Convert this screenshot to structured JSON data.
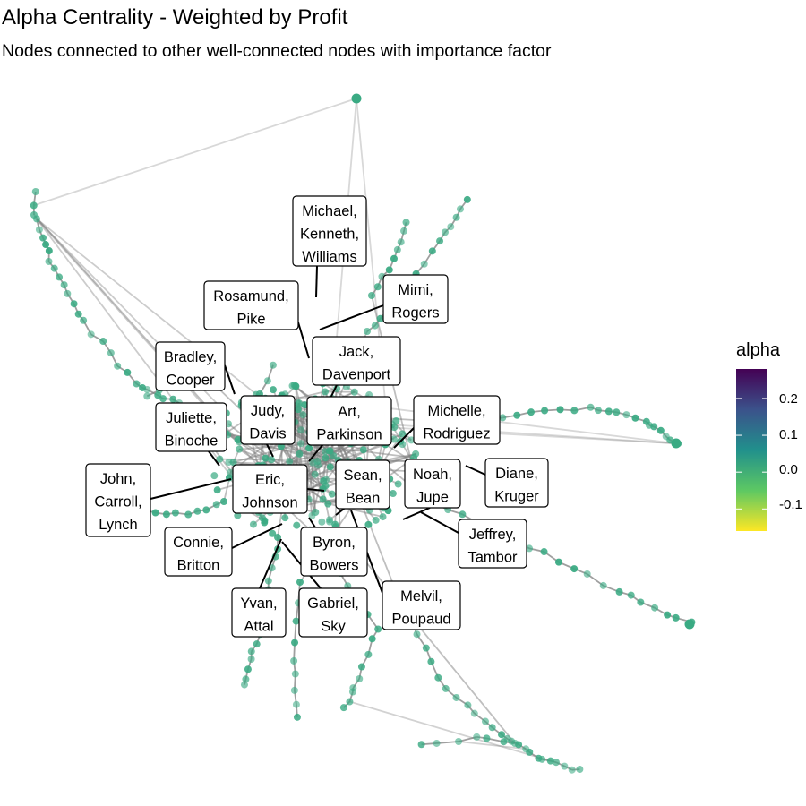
{
  "title": "Alpha Centrality - Weighted by Profit",
  "subtitle": "Nodes connected to other well-connected nodes with importance factor",
  "chart_data": {
    "type": "network",
    "node_color_variable": "alpha",
    "node_color_default": "#3aaa83",
    "edge_color": "#7f7f7f",
    "legend": {
      "title": "alpha",
      "position": "right",
      "scale": "viridis (reversed)",
      "range": [
        -0.16,
        0.28
      ],
      "ticks": [
        0.2,
        0.1,
        0.0,
        -0.1
      ],
      "tick_labels": [
        "0.2",
        "0.1",
        "0.0",
        "-0.1"
      ],
      "colors": [
        "#440154",
        "#3b528b",
        "#21908c",
        "#5dc863",
        "#fde725"
      ]
    },
    "labeled_nodes": [
      [
        "Michael,",
        "Kenneth,",
        "Williams"
      ],
      [
        "Mimi,",
        "Rogers"
      ],
      [
        "Rosamund,",
        "Pike"
      ],
      [
        "Jack,",
        "Davenport"
      ],
      [
        "Bradley,",
        "Cooper"
      ],
      [
        "Judy,",
        "Davis"
      ],
      [
        "Art,",
        "Parkinson"
      ],
      [
        "Michelle,",
        "Rodriguez"
      ],
      [
        "Juliette,",
        "Binoche"
      ],
      [
        "John,",
        "Carroll,",
        "Lynch"
      ],
      [
        "Eric,",
        "Johnson"
      ],
      [
        "Sean,",
        "Bean"
      ],
      [
        "Noah,",
        "Jupe"
      ],
      [
        "Diane,",
        "Kruger"
      ],
      [
        "Jeffrey,",
        "Tambor"
      ],
      [
        "Connie,",
        "Britton"
      ],
      [
        "Byron,",
        "Bowers"
      ],
      [
        "Melvil,",
        "Poupaud"
      ],
      [
        "Yvan,",
        "Attal"
      ],
      [
        "Gabriel,",
        "Sky"
      ]
    ]
  }
}
